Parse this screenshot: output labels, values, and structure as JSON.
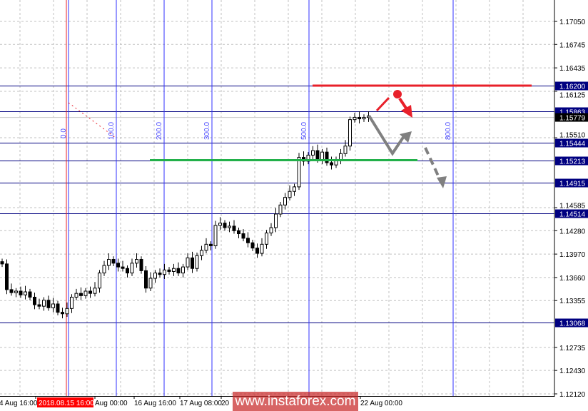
{
  "chart_data": {
    "type": "candlestick",
    "price_axis": {
      "ticks": [
        "1.17050",
        "1.16745",
        "1.16435",
        "1.16125",
        "1.15510",
        "1.14585",
        "1.14280",
        "1.13970",
        "1.13660",
        "1.13355",
        "1.12735",
        "1.12430",
        "1.12120"
      ],
      "range": [
        1.1212,
        1.1705
      ]
    },
    "time_axis": {
      "ticks": [
        "4 Aug 16:00",
        "Aug 00:00",
        "16 Aug 16:00",
        "17 Aug 08:00",
        "20",
        "22 Aug 00:00"
      ],
      "highlight_label": "2018.08.15 16:00"
    },
    "closes": [
      1.1384,
      1.135,
      1.1346,
      1.1348,
      1.1343,
      1.1347,
      1.134,
      1.133,
      1.1328,
      1.1336,
      1.1326,
      1.1331,
      1.132,
      1.1318,
      1.1325,
      1.134,
      1.1345,
      1.1342,
      1.1348,
      1.1345,
      1.1352,
      1.1372,
      1.1382,
      1.139,
      1.1385,
      1.138,
      1.1378,
      1.1372,
      1.1385,
      1.139,
      1.1375,
      1.1352,
      1.1365,
      1.1372,
      1.137,
      1.1376,
      1.1374,
      1.1378,
      1.1372,
      1.138,
      1.1392,
      1.1378,
      1.1395,
      1.1402,
      1.141,
      1.1408,
      1.1435,
      1.1438,
      1.1432,
      1.1434,
      1.1428,
      1.1424,
      1.1418,
      1.1412,
      1.1405,
      1.1398,
      1.141,
      1.1425,
      1.1432,
      1.145,
      1.1462,
      1.1472,
      1.148,
      1.1486,
      1.1525,
      1.152,
      1.1528,
      1.1534,
      1.1522,
      1.1532,
      1.1518,
      1.1515,
      1.1522,
      1.153,
      1.154,
      1.1575,
      1.1578,
      1.1576,
      1.1578,
      1.158
    ],
    "current_price": "1.15779",
    "levels": [
      {
        "price": 1.162,
        "label": "1.16200"
      },
      {
        "price": 1.15863,
        "label": "1.15863"
      },
      {
        "price": 1.15444,
        "label": "1.15444"
      },
      {
        "price": 1.15213,
        "label": "1.15213"
      },
      {
        "price": 1.14915,
        "label": "1.14915"
      },
      {
        "price": 1.14514,
        "label": "1.14514"
      },
      {
        "price": 1.13068,
        "label": "1.13068"
      }
    ],
    "resistance_line": {
      "price": 1.162,
      "color": "#e8202a"
    },
    "support_line": {
      "price": 1.15213,
      "color": "#22b04a"
    },
    "fib_time_zones": [
      "0.0",
      "100.0",
      "200.0",
      "300.0",
      "500.0",
      "800.0"
    ],
    "colors": {
      "level_line": "#000080",
      "fib_line": "#3030ff",
      "arrow_gray": "#808080",
      "arrow_red": "#e8202a",
      "candle": "#000000"
    }
  },
  "watermark": "www.instaforex.com"
}
